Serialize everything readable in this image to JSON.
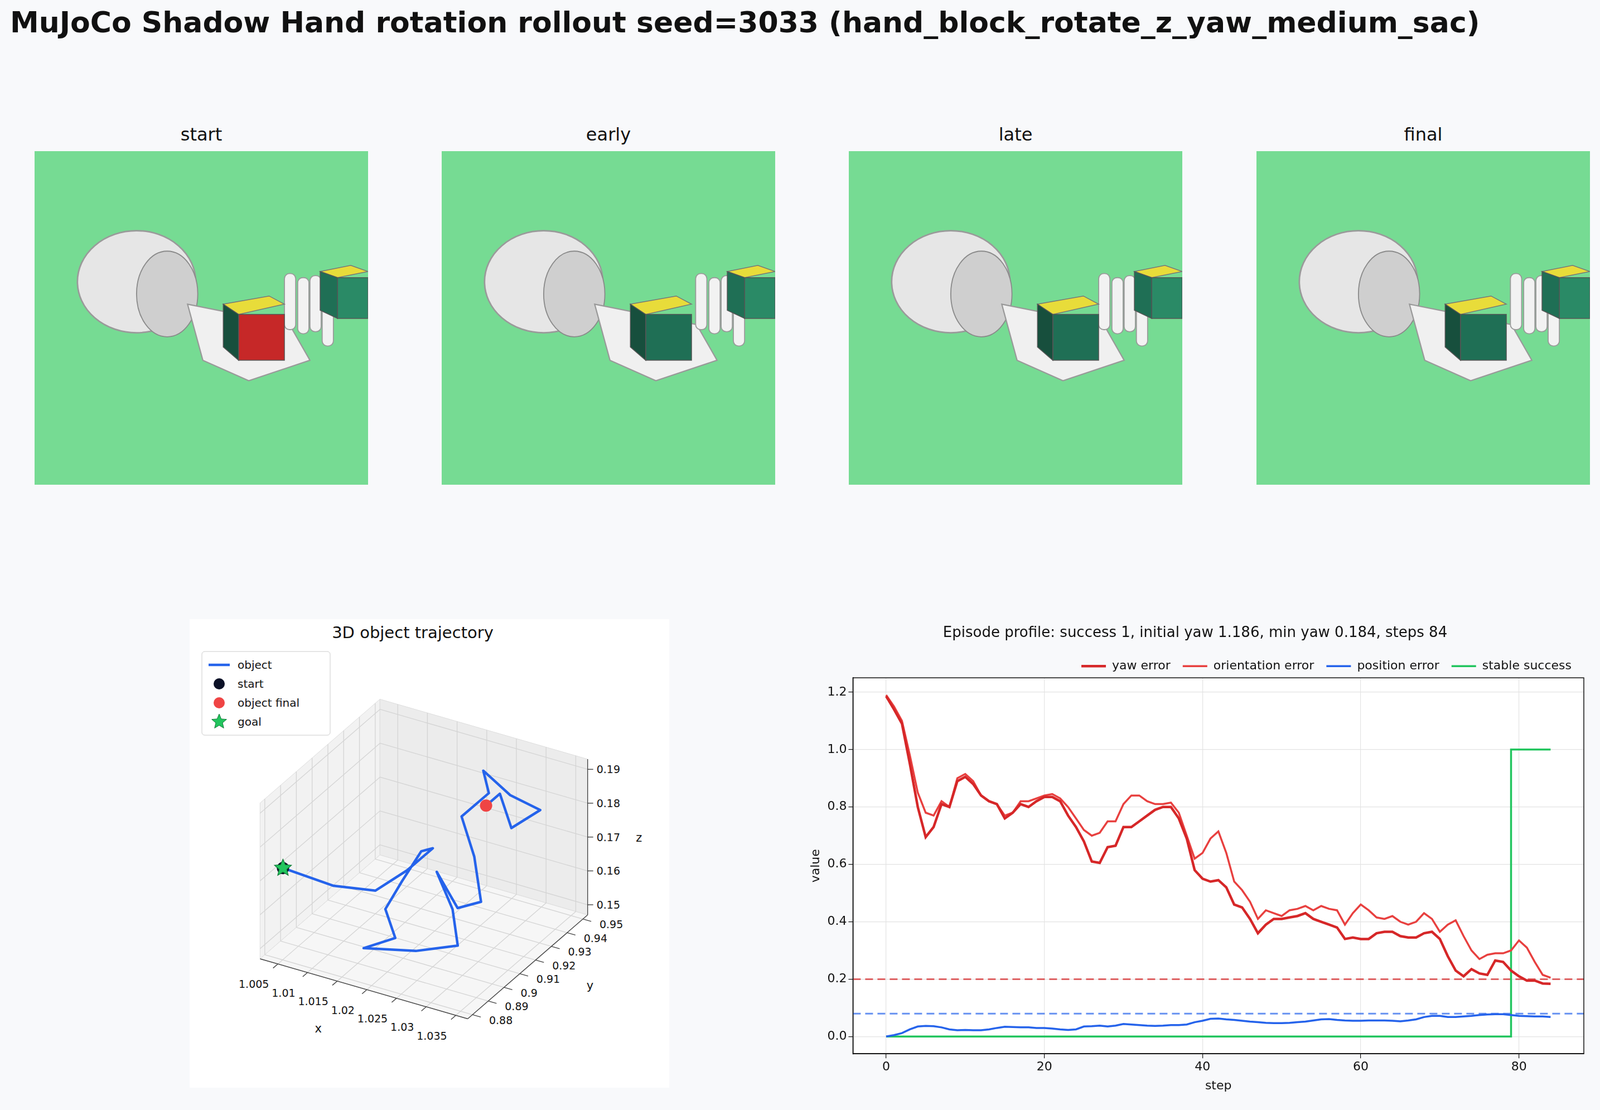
{
  "title": "MuJoCo Shadow Hand rotation rollout seed=3033 (hand_block_rotate_z_yaw_medium_sac)",
  "panels": [
    {
      "title": "start"
    },
    {
      "title": "early"
    },
    {
      "title": "late"
    },
    {
      "title": "final"
    }
  ],
  "chart_data": [
    {
      "type": "line3d",
      "title": "3D object trajectory",
      "x_label": "x",
      "y_label": "y",
      "z_label": "z",
      "xlim": [
        1.002,
        1.037
      ],
      "xticks": [
        1.005,
        1.01,
        1.015,
        1.02,
        1.025,
        1.03,
        1.035
      ],
      "ylim": [
        0.877,
        0.953
      ],
      "yticks": [
        0.88,
        0.89,
        0.9,
        0.91,
        0.92,
        0.93,
        0.94,
        0.95
      ],
      "zlim": [
        0.147,
        0.193
      ],
      "zticks": [
        0.15,
        0.16,
        0.17,
        0.18,
        0.19
      ],
      "grid": true,
      "legend": "upper left",
      "series": [
        {
          "name": "object",
          "type": "line",
          "color": "#2563eb",
          "x": [
            1.004,
            1.012,
            1.018,
            1.022,
            1.025,
            1.022,
            1.019,
            1.017,
            1.02,
            1.016,
            1.024,
            1.03,
            1.027,
            1.023,
            1.026,
            1.031,
            1.028,
            1.024,
            1.027,
            1.025,
            1.029,
            1.033,
            1.03,
            1.027,
            1.026
          ],
          "y": [
            0.884,
            0.886,
            0.89,
            0.895,
            0.9,
            0.904,
            0.903,
            0.9,
            0.895,
            0.89,
            0.893,
            0.897,
            0.905,
            0.91,
            0.912,
            0.908,
            0.915,
            0.922,
            0.928,
            0.932,
            0.934,
            0.938,
            0.931,
            0.935,
            0.93
          ],
          "z": [
            0.172,
            0.17,
            0.17,
            0.176,
            0.182,
            0.178,
            0.168,
            0.16,
            0.155,
            0.152,
            0.154,
            0.157,
            0.163,
            0.17,
            0.16,
            0.166,
            0.175,
            0.182,
            0.188,
            0.192,
            0.186,
            0.182,
            0.178,
            0.185,
            0.183
          ]
        },
        {
          "name": "start",
          "type": "scatter",
          "marker": "circle",
          "color": "#0b1026",
          "x": [
            1.004
          ],
          "y": [
            0.884
          ],
          "z": [
            0.172
          ]
        },
        {
          "name": "object final",
          "type": "scatter",
          "marker": "circle",
          "color": "#ef4444",
          "x": [
            1.026
          ],
          "y": [
            0.93
          ],
          "z": [
            0.183
          ]
        },
        {
          "name": "goal",
          "type": "scatter",
          "marker": "star",
          "color": "#22c55e",
          "x": [
            1.004
          ],
          "y": [
            0.884
          ],
          "z": [
            0.172
          ]
        }
      ]
    },
    {
      "type": "line",
      "title": "Episode profile: success 1, initial yaw 1.186, min yaw 0.184, steps 84",
      "x_label": "step",
      "y_label": "value",
      "xlim": [
        -4.2,
        88.2
      ],
      "xticks": [
        0,
        20,
        40,
        60,
        80
      ],
      "ylim": [
        -0.06,
        1.25
      ],
      "yticks": [
        {
          "value": 0,
          "label": "0.0"
        },
        {
          "value": 0.2,
          "label": "0.2"
        },
        {
          "value": 0.4,
          "label": "0.4"
        },
        {
          "value": 0.6,
          "label": "0.6"
        },
        {
          "value": 0.8,
          "label": "0.8"
        },
        {
          "value": 1.0,
          "label": "1.0"
        },
        {
          "value": 1.2,
          "label": "1.2"
        }
      ],
      "grid": true,
      "legend": "top right",
      "x": [
        0,
        1,
        2,
        3,
        4,
        5,
        6,
        7,
        8,
        9,
        10,
        11,
        12,
        13,
        14,
        15,
        16,
        17,
        18,
        19,
        20,
        21,
        22,
        23,
        24,
        25,
        26,
        27,
        28,
        29,
        30,
        31,
        32,
        33,
        34,
        35,
        36,
        37,
        38,
        39,
        40,
        41,
        42,
        43,
        44,
        45,
        46,
        47,
        48,
        49,
        50,
        51,
        52,
        53,
        54,
        55,
        56,
        57,
        58,
        59,
        60,
        61,
        62,
        63,
        64,
        65,
        66,
        67,
        68,
        69,
        70,
        71,
        72,
        73,
        74,
        75,
        76,
        77,
        78,
        79,
        80,
        81,
        82,
        83,
        84
      ],
      "series": [
        {
          "name": "yaw error",
          "color": "#d62728",
          "line_style": "solid",
          "values": [
            1.186,
            1.14,
            1.09,
            0.95,
            0.8,
            0.695,
            0.73,
            0.81,
            0.8,
            0.89,
            0.905,
            0.88,
            0.84,
            0.82,
            0.81,
            0.76,
            0.78,
            0.81,
            0.8,
            0.82,
            0.835,
            0.835,
            0.82,
            0.77,
            0.73,
            0.68,
            0.61,
            0.605,
            0.66,
            0.665,
            0.73,
            0.73,
            0.75,
            0.77,
            0.79,
            0.8,
            0.8,
            0.76,
            0.69,
            0.58,
            0.55,
            0.54,
            0.545,
            0.52,
            0.46,
            0.45,
            0.41,
            0.36,
            0.39,
            0.41,
            0.41,
            0.415,
            0.42,
            0.43,
            0.41,
            0.4,
            0.39,
            0.38,
            0.34,
            0.345,
            0.34,
            0.34,
            0.36,
            0.365,
            0.365,
            0.35,
            0.345,
            0.345,
            0.36,
            0.365,
            0.34,
            0.28,
            0.23,
            0.21,
            0.235,
            0.22,
            0.215,
            0.265,
            0.26,
            0.23,
            0.21,
            0.195,
            0.195,
            0.185,
            0.184
          ]
        },
        {
          "name": "orientation error",
          "color": "#e8403f",
          "line_style": "solid",
          "values": [
            1.19,
            1.15,
            1.1,
            0.98,
            0.85,
            0.78,
            0.77,
            0.82,
            0.8,
            0.9,
            0.915,
            0.89,
            0.84,
            0.82,
            0.81,
            0.77,
            0.78,
            0.82,
            0.82,
            0.83,
            0.84,
            0.845,
            0.83,
            0.8,
            0.76,
            0.72,
            0.7,
            0.71,
            0.75,
            0.75,
            0.81,
            0.84,
            0.84,
            0.82,
            0.81,
            0.81,
            0.815,
            0.78,
            0.7,
            0.62,
            0.64,
            0.69,
            0.715,
            0.64,
            0.54,
            0.51,
            0.47,
            0.41,
            0.44,
            0.43,
            0.42,
            0.44,
            0.445,
            0.455,
            0.44,
            0.455,
            0.445,
            0.44,
            0.39,
            0.43,
            0.46,
            0.44,
            0.415,
            0.41,
            0.42,
            0.4,
            0.39,
            0.4,
            0.43,
            0.41,
            0.365,
            0.39,
            0.405,
            0.35,
            0.3,
            0.27,
            0.285,
            0.29,
            0.29,
            0.3,
            0.335,
            0.31,
            0.26,
            0.215,
            0.205
          ]
        },
        {
          "name": "position error",
          "color": "#2563eb",
          "line_style": "solid",
          "values": [
            0,
            0.005,
            0.012,
            0.025,
            0.035,
            0.037,
            0.036,
            0.032,
            0.025,
            0.022,
            0.023,
            0.022,
            0.022,
            0.025,
            0.03,
            0.034,
            0.033,
            0.032,
            0.032,
            0.03,
            0.03,
            0.028,
            0.025,
            0.023,
            0.025,
            0.035,
            0.036,
            0.038,
            0.035,
            0.038,
            0.044,
            0.042,
            0.04,
            0.038,
            0.037,
            0.038,
            0.04,
            0.04,
            0.042,
            0.05,
            0.055,
            0.062,
            0.063,
            0.06,
            0.058,
            0.055,
            0.052,
            0.05,
            0.048,
            0.047,
            0.047,
            0.048,
            0.05,
            0.052,
            0.056,
            0.06,
            0.061,
            0.058,
            0.056,
            0.055,
            0.055,
            0.056,
            0.056,
            0.056,
            0.055,
            0.053,
            0.056,
            0.06,
            0.068,
            0.072,
            0.072,
            0.068,
            0.068,
            0.07,
            0.072,
            0.075,
            0.077,
            0.078,
            0.078,
            0.075,
            0.072,
            0.071,
            0.07,
            0.07,
            0.068
          ]
        },
        {
          "name": "stable success",
          "color": "#22c55e",
          "line_style": "steps",
          "values": [
            0,
            0,
            0,
            0,
            0,
            0,
            0,
            0,
            0,
            0,
            0,
            0,
            0,
            0,
            0,
            0,
            0,
            0,
            0,
            0,
            0,
            0,
            0,
            0,
            0,
            0,
            0,
            0,
            0,
            0,
            0,
            0,
            0,
            0,
            0,
            0,
            0,
            0,
            0,
            0,
            0,
            0,
            0,
            0,
            0,
            0,
            0,
            0,
            0,
            0,
            0,
            0,
            0,
            0,
            0,
            0,
            0,
            0,
            0,
            0,
            0,
            0,
            0,
            0,
            0,
            0,
            0,
            0,
            0,
            0,
            0,
            0,
            0,
            0,
            0,
            0,
            0,
            0,
            0,
            0,
            1,
            1,
            1,
            1,
            1
          ]
        }
      ],
      "reference_lines": [
        {
          "value": 0.2,
          "color": "#d62728",
          "line_style": "dashed"
        },
        {
          "value": 0.08,
          "color": "#2563eb",
          "line_style": "dashed"
        }
      ]
    }
  ]
}
